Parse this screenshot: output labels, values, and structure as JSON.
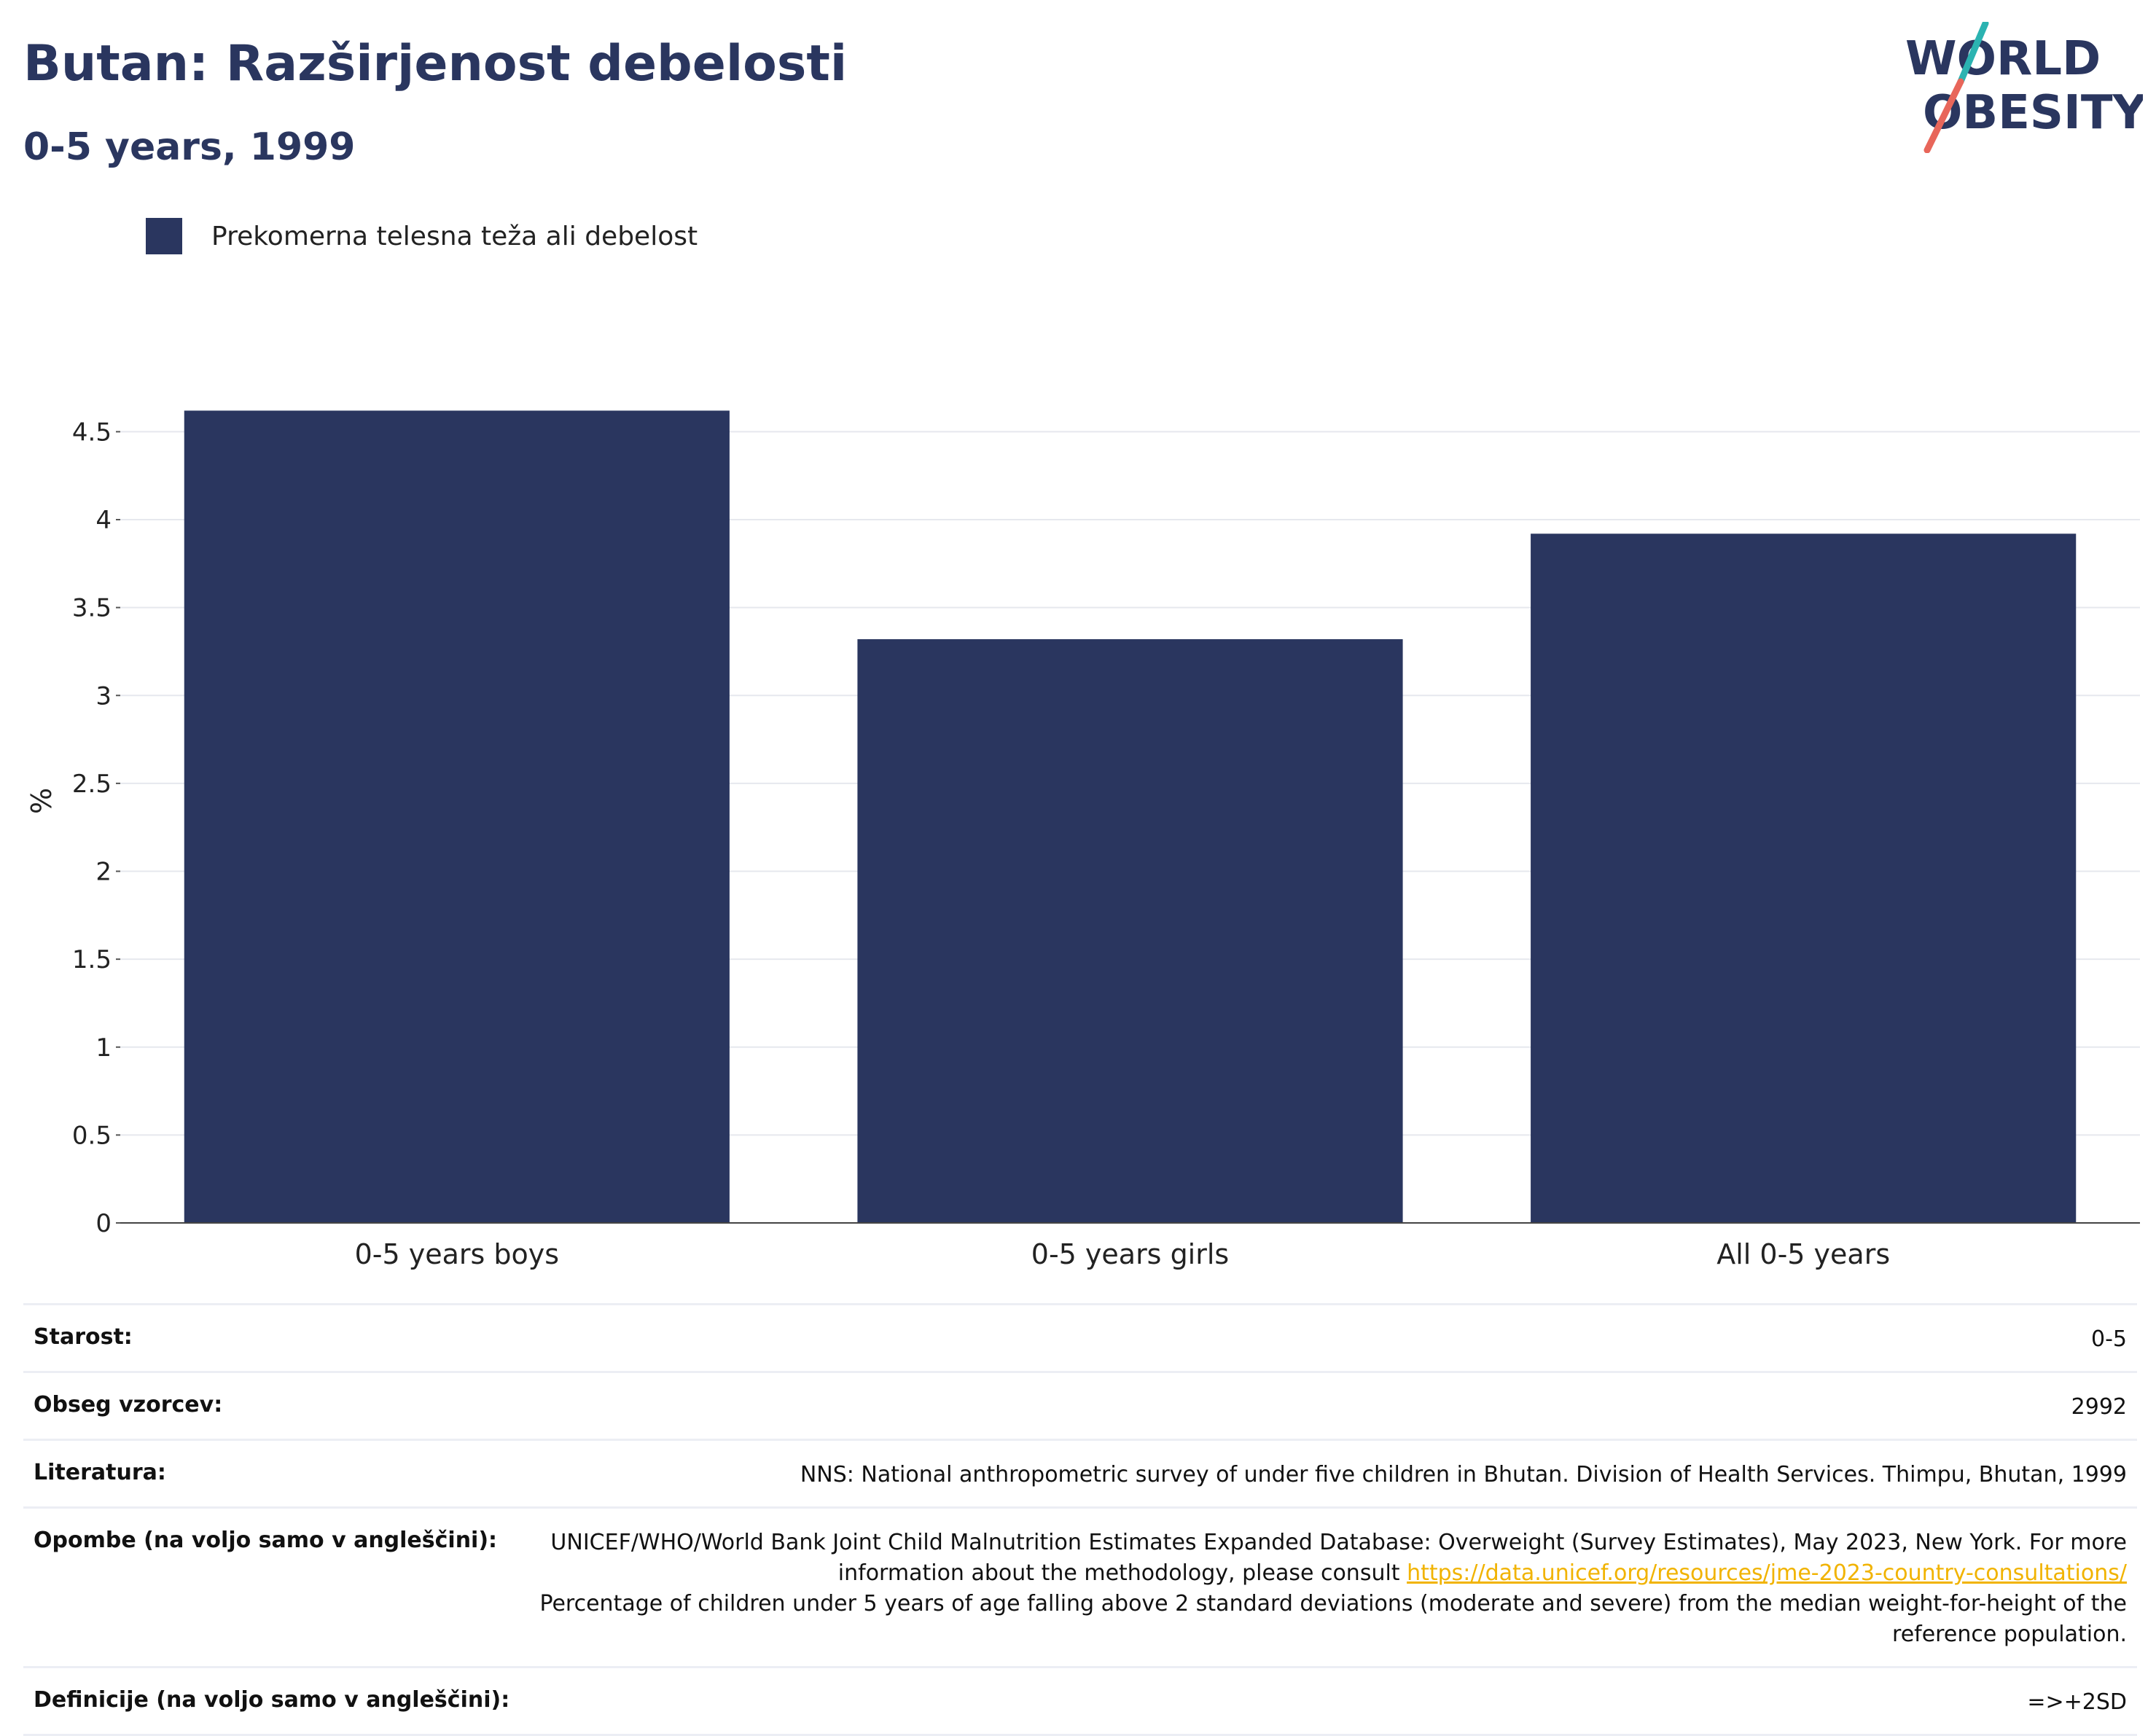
{
  "header": {
    "title": "Butan: Razširjenost debelosti",
    "subtitle": "0-5 years, 1999"
  },
  "logo": {
    "line1": "WORLD",
    "line2": "OBESITY",
    "colors": {
      "text": "#2a365f",
      "slash_top": "#2bb3b1",
      "slash_bottom": "#e8665a"
    }
  },
  "legend": {
    "label": "Prekomerna telesna teža ali debelost",
    "color": "#2a365f"
  },
  "chart_data": {
    "type": "bar",
    "categories": [
      "0-5 years boys",
      "0-5 years girls",
      "All 0-5 years"
    ],
    "series": [
      {
        "name": "Prekomerna telesna teža ali debelost",
        "values": [
          4.62,
          3.32,
          3.92
        ],
        "color": "#2a365f"
      }
    ],
    "ylabel": "%",
    "ylim": [
      0,
      4.8
    ],
    "yticks": [
      0,
      0.5,
      1,
      1.5,
      2,
      2.5,
      3,
      3.5,
      4,
      4.5
    ],
    "ytick_labels": [
      "0",
      "0.5",
      "1",
      "1.5",
      "2",
      "2.5",
      "3",
      "3.5",
      "4",
      "4.5"
    ],
    "grid": true
  },
  "info": {
    "age_label": "Starost:",
    "age_value": "0-5",
    "sample_label": "Obseg vzorcev:",
    "sample_value": "2992",
    "literature_label": "Literatura:",
    "literature_value": "NNS: National anthropometric survey of under five children in Bhutan. Division of Health Services. Thimpu, Bhutan, 1999",
    "notes_label": "Opombe (na voljo samo v angleščini):",
    "notes_before": "UNICEF/WHO/World Bank Joint Child Malnutrition Estimates Expanded Database: Overweight (Survey Estimates), May 2023, New York. For more information about the methodology, please consult ",
    "notes_link": "https://data.unicef.org/resources/jme-2023-country-consultations/",
    "notes_after": "Percentage of children under 5 years of age falling above 2 standard deviations (moderate and severe) from the median weight-for-height of the reference population.",
    "definitions_label": "Definicije (na voljo samo v angleščini):",
    "definitions_value": "=>+2SD"
  }
}
